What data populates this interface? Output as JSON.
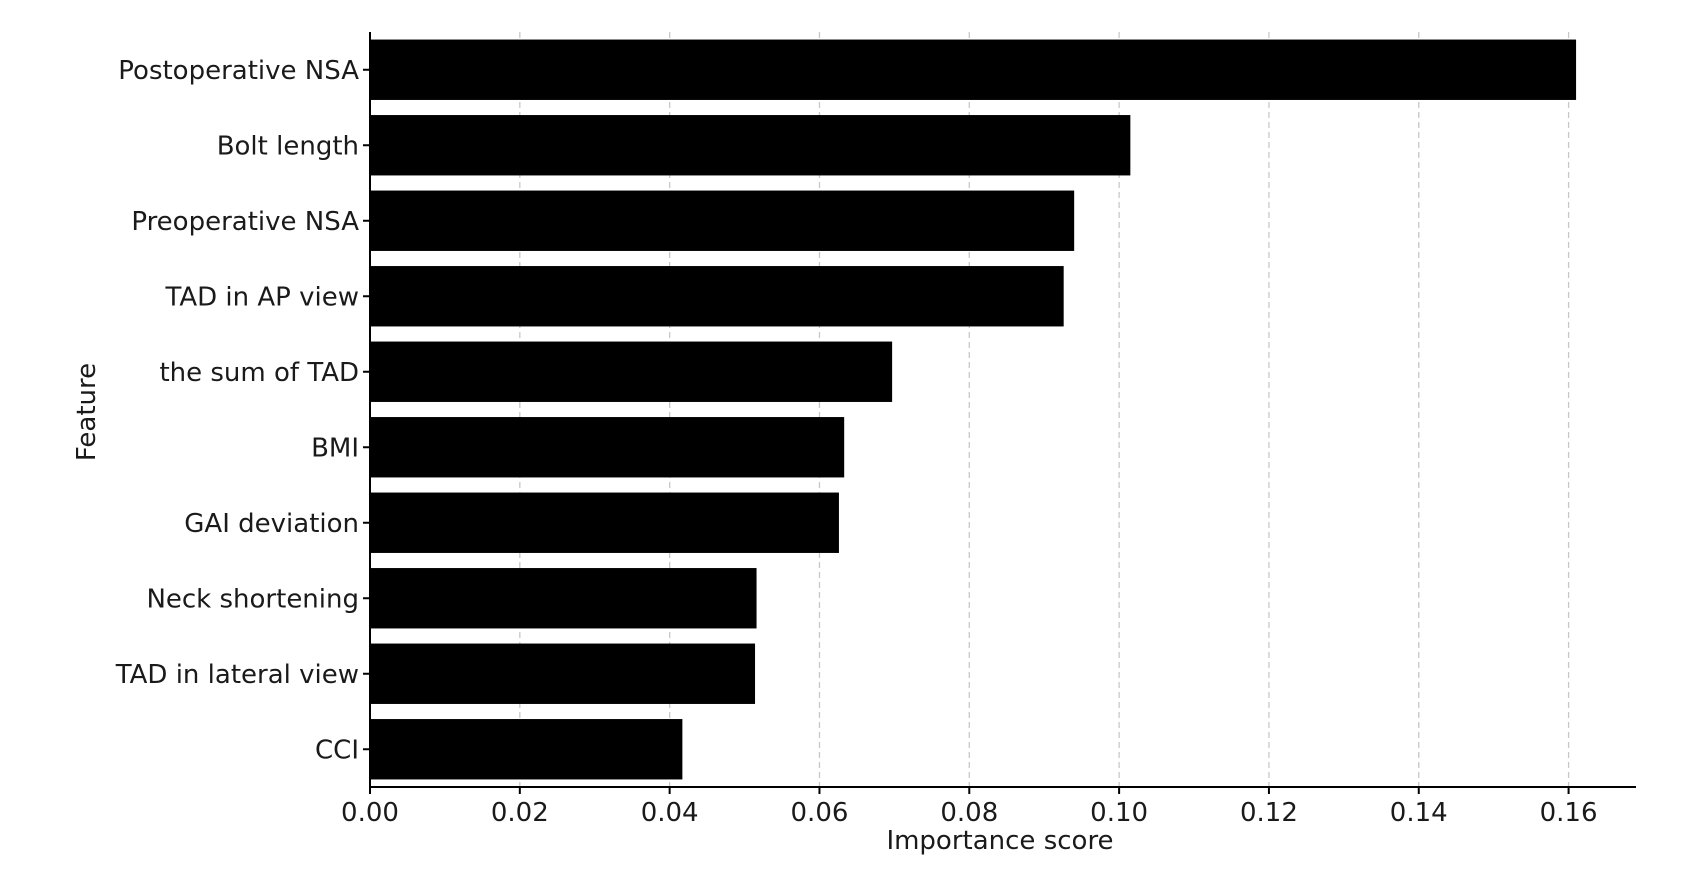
{
  "chart_data": {
    "type": "bar",
    "orientation": "horizontal",
    "categories": [
      "Postoperative NSA",
      "Bolt length",
      "Preoperative NSA",
      "TAD in AP view",
      "the sum of TAD",
      "BMI",
      "GAI deviation",
      "Neck shortening",
      "TAD in lateral view",
      "CCI"
    ],
    "values": [
      0.161,
      0.1015,
      0.094,
      0.0926,
      0.0697,
      0.0633,
      0.0626,
      0.0516,
      0.0514,
      0.0417
    ],
    "xlabel": "Importance score",
    "ylabel": "Feature",
    "xlim": [
      0,
      0.169
    ],
    "xticks": [
      0.0,
      0.02,
      0.04,
      0.06,
      0.08,
      0.1,
      0.12,
      0.14,
      0.16
    ],
    "xtick_labels": [
      "0.00",
      "0.02",
      "0.04",
      "0.06",
      "0.08",
      "0.10",
      "0.12",
      "0.14",
      "0.16"
    ],
    "grid": "vertical dashed",
    "bar_color": "#000000",
    "grid_color": "#c8c8c8",
    "axis_color": "#000000"
  }
}
